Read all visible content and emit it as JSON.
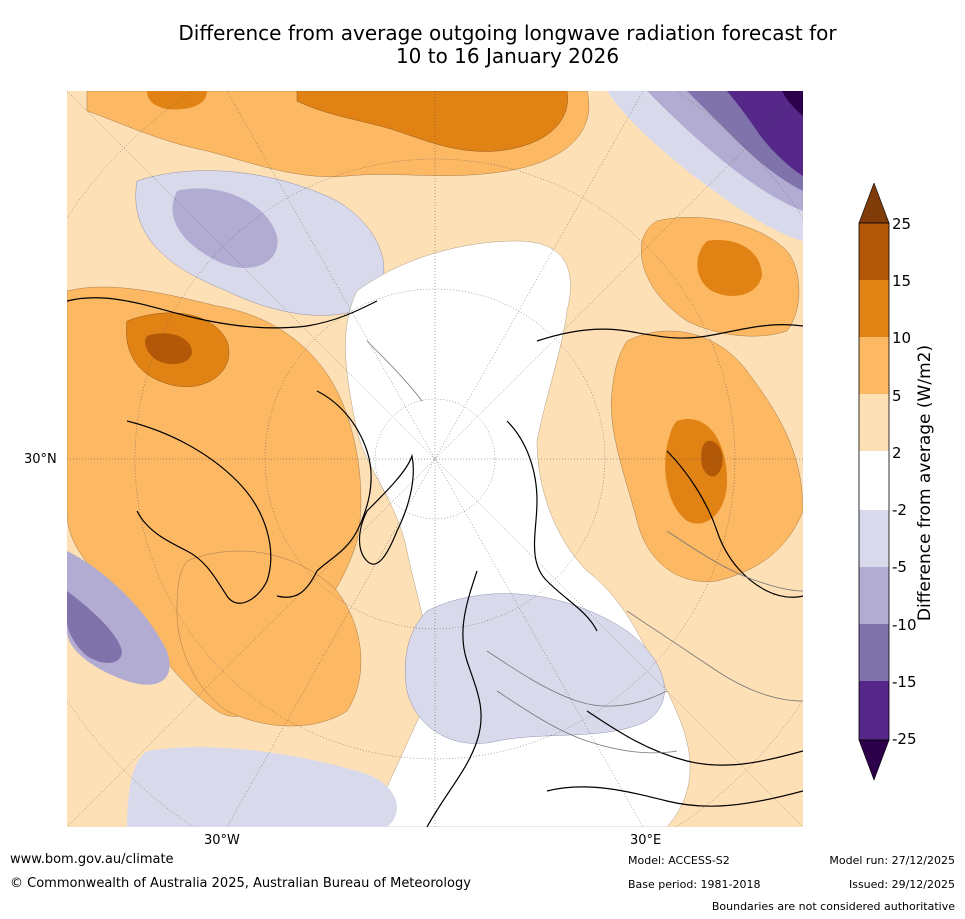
{
  "title_line1": "Difference from average outgoing longwave radiation forecast for",
  "title_line2": "10 to 16 January 2026",
  "axes": {
    "lat_label": "30°N",
    "lon_label_left": "30°W",
    "lon_label_right": "30°E"
  },
  "colorbar": {
    "label": "Difference from average (W/m2)",
    "ticks": [
      "25",
      "15",
      "10",
      "5",
      "2",
      "-2",
      "-5",
      "-10",
      "-15",
      "-25"
    ],
    "colors": {
      "over": "#7f3b08",
      "15to25": "#b35806",
      "10to15": "#e08214",
      "5to10": "#fdb863",
      "2to5": "#fee0b6",
      "neutral": "#ffffff",
      "m5tom2": "#d8daeb",
      "m10tom5": "#b2abd2",
      "m15tom10": "#8073ac",
      "m25tom15": "#542788",
      "under": "#2d004b"
    }
  },
  "footer": {
    "website": "www.bom.gov.au/climate",
    "copyright": "© Commonwealth of Australia 2025, Australian Bureau of Meteorology",
    "model": "Model: ACCESS-S2",
    "base_period": "Base period: 1981-2018",
    "model_run": "Model run: 27/12/2025",
    "issued": "Issued: 29/12/2025",
    "disclaimer": "Boundaries are not considered authoritative"
  }
}
